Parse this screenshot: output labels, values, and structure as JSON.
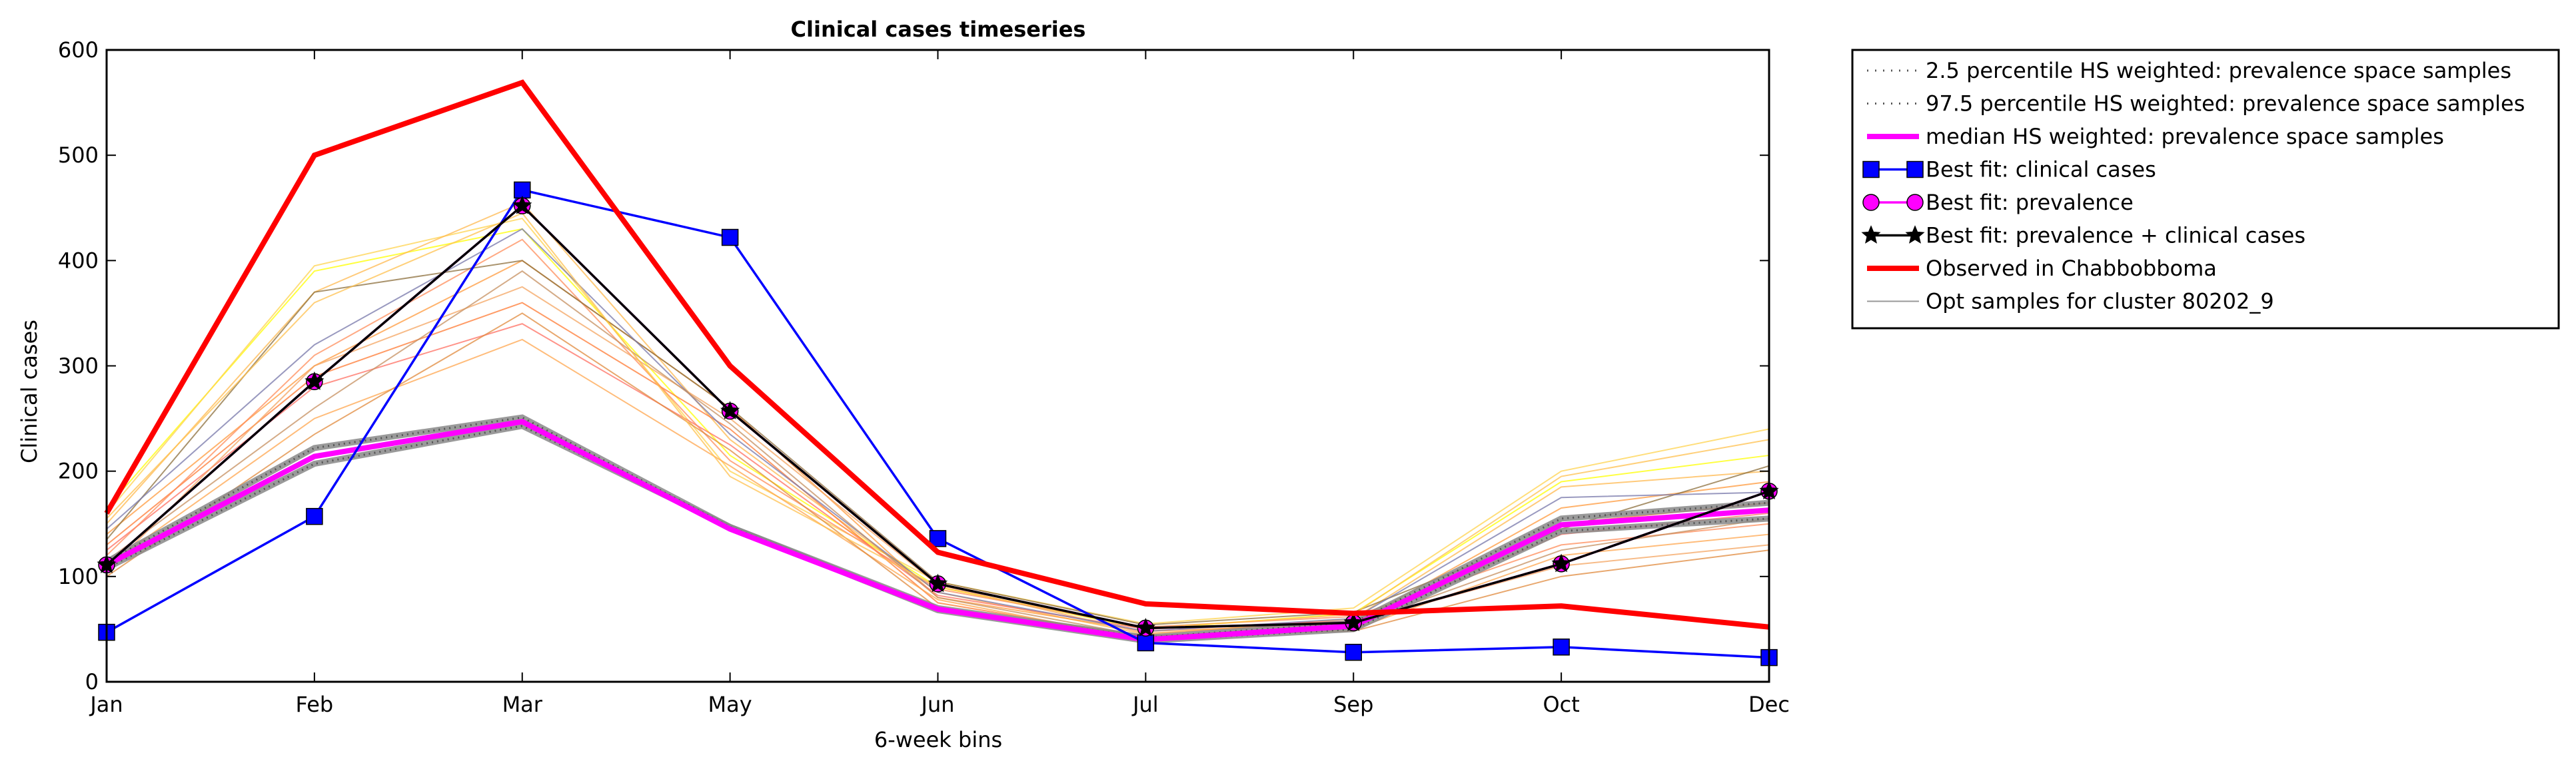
{
  "chart_data": {
    "type": "line",
    "title": "Clinical cases timeseries",
    "xlabel": "6-week bins",
    "ylabel": "Clinical cases",
    "categories": [
      "Jan",
      "Feb",
      "Mar",
      "May",
      "Jun",
      "Jul",
      "Sep",
      "Oct",
      "Dec"
    ],
    "ylim": [
      0,
      600
    ],
    "yticks": [
      0,
      100,
      200,
      300,
      400,
      500,
      600
    ],
    "grid": false,
    "legend_position": "outside-top-right",
    "series": [
      {
        "name": "Opt samples for cluster 80202_9",
        "kind": "samples",
        "values": [
          [
            165,
            390,
            430,
            215,
            90,
            50,
            65,
            190,
            215
          ],
          [
            160,
            395,
            440,
            200,
            95,
            55,
            70,
            200,
            240
          ],
          [
            150,
            370,
            455,
            230,
            85,
            45,
            60,
            185,
            200
          ],
          [
            140,
            300,
            400,
            260,
            80,
            48,
            55,
            165,
            190
          ],
          [
            130,
            290,
            360,
            240,
            75,
            42,
            52,
            150,
            170
          ],
          [
            125,
            280,
            340,
            225,
            82,
            50,
            58,
            140,
            160
          ],
          [
            120,
            310,
            420,
            210,
            88,
            52,
            62,
            130,
            150
          ],
          [
            110,
            250,
            325,
            205,
            78,
            40,
            50,
            120,
            140
          ],
          [
            105,
            300,
            375,
            250,
            92,
            46,
            56,
            110,
            130
          ],
          [
            100,
            235,
            350,
            220,
            70,
            44,
            48,
            100,
            125
          ],
          [
            135,
            370,
            400,
            260,
            95,
            54,
            66,
            145,
            205
          ],
          [
            145,
            320,
            430,
            235,
            85,
            48,
            60,
            175,
            180
          ],
          [
            115,
            260,
            390,
            245,
            80,
            43,
            54,
            125,
            155
          ],
          [
            155,
            360,
            445,
            195,
            90,
            51,
            64,
            195,
            230
          ]
        ],
        "colors": [
          "#ffff00",
          "#ffd34d",
          "#ffb84d",
          "#ff9a3c",
          "#ff7a33",
          "#ff6f61",
          "#ff8c5a",
          "#ffa64d",
          "#f4a460",
          "#e08a3c",
          "#8c6f3c",
          "#7777aa",
          "#c58f5f",
          "#ffc04d"
        ]
      },
      {
        "name": "2.5 percentile HS weighted: prevalence space samples",
        "values": [
          108,
          207,
          243,
          147,
          68,
          39,
          50,
          143,
          155
        ],
        "color": "#555555",
        "style": "dotted"
      },
      {
        "name": "97.5 percentile HS weighted: prevalence space samples",
        "values": [
          114,
          222,
          251,
          147,
          70,
          42,
          56,
          155,
          170
        ],
        "color": "#555555",
        "style": "dotted"
      },
      {
        "name": "median HS weighted: prevalence space samples",
        "values": [
          111,
          214,
          247,
          145,
          69,
          40,
          53,
          149,
          163
        ],
        "color": "#ff00ff",
        "style": "thick"
      },
      {
        "name": "Best fit: clinical cases",
        "values": [
          47,
          157,
          467,
          422,
          136,
          37,
          28,
          33,
          23
        ],
        "color": "#0000ff",
        "marker": "square"
      },
      {
        "name": "Best fit: prevalence",
        "values": [
          111,
          285,
          452,
          257,
          93,
          51,
          56,
          112,
          181
        ],
        "color": "#ff00ff",
        "marker": "circle"
      },
      {
        "name": "Best fit: prevalence + clinical cases",
        "values": [
          111,
          285,
          452,
          257,
          93,
          51,
          56,
          112,
          181
        ],
        "color": "#000000",
        "marker": "star"
      },
      {
        "name": "Observed in Chabbobboma",
        "values": [
          160,
          500,
          569,
          300,
          123,
          74,
          65,
          72,
          52
        ],
        "color": "#ff0000",
        "style": "thick"
      }
    ],
    "legend": [
      {
        "label": "2.5 percentile HS weighted: prevalence space samples",
        "color": "#555555",
        "kind": "dotted"
      },
      {
        "label": "97.5 percentile HS weighted: prevalence space samples",
        "color": "#555555",
        "kind": "dotted"
      },
      {
        "label": "median HS weighted: prevalence space samples",
        "color": "#ff00ff",
        "kind": "thick"
      },
      {
        "label": "Best fit: clinical cases",
        "color": "#0000ff",
        "kind": "square"
      },
      {
        "label": "Best fit: prevalence",
        "color": "#ff00ff",
        "kind": "circle"
      },
      {
        "label": "Best fit: prevalence + clinical cases",
        "color": "#000000",
        "kind": "star"
      },
      {
        "label": "Observed in Chabbobboma",
        "color": "#ff0000",
        "kind": "thick"
      },
      {
        "label": "Opt samples for cluster 80202_9",
        "color": "#999999",
        "kind": "thin"
      }
    ]
  }
}
